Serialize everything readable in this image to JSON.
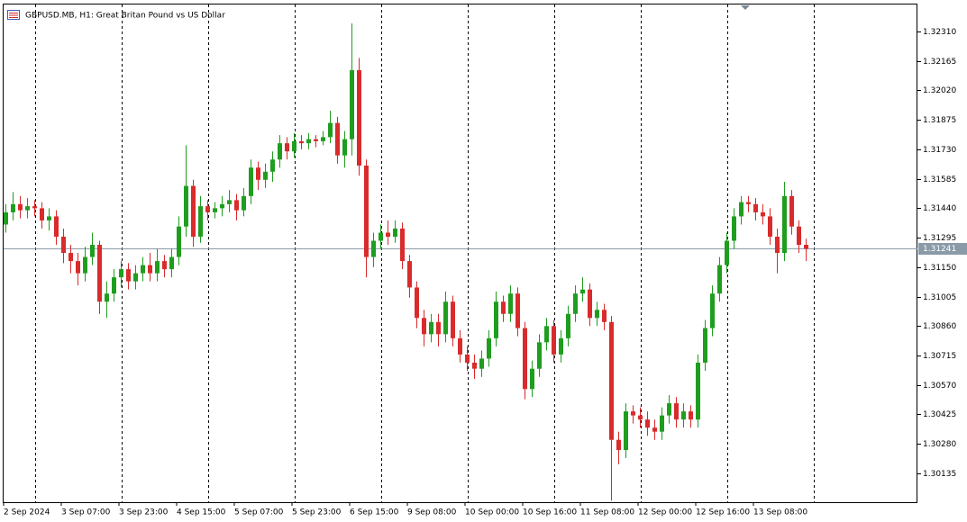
{
  "chart_data": {
    "type": "candlestick",
    "title": "GBPUSD.MB, H1:  Great Britan Pound vs US Dollar",
    "categories": [
      "2 Sep 2024",
      null,
      null,
      null,
      null,
      null,
      null,
      null,
      "3 Sep 07:00",
      null,
      null,
      null,
      null,
      null,
      null,
      null,
      "3 Sep 23:00",
      null,
      null,
      null,
      null,
      null,
      null,
      null,
      "4 Sep 15:00",
      null,
      null,
      null,
      null,
      null,
      null,
      null,
      "5 Sep 07:00",
      null,
      null,
      null,
      null,
      null,
      null,
      null,
      "5 Sep 23:00",
      null,
      null,
      null,
      null,
      null,
      null,
      null,
      "6 Sep 15:00",
      null,
      null,
      null,
      null,
      null,
      null,
      null,
      "9 Sep 08:00",
      null,
      null,
      null,
      null,
      null,
      null,
      null,
      "10 Sep 00:00",
      null,
      null,
      null,
      null,
      null,
      null,
      null,
      "10 Sep 16:00",
      null,
      null,
      null,
      null,
      null,
      null,
      null,
      "11 Sep 08:00",
      null,
      null,
      null,
      null,
      null,
      null,
      null,
      "12 Sep 00:00",
      null,
      null,
      null,
      null,
      null,
      null,
      null,
      "12 Sep 16:00",
      null,
      null,
      null,
      null,
      null,
      null,
      null,
      "13 Sep 08:00",
      null,
      null,
      null,
      null,
      null,
      null,
      null
    ],
    "open": [
      1.3136,
      1.3142,
      1.3146,
      1.3143,
      1.3145,
      1.3144,
      1.3138,
      1.314,
      1.313,
      1.3122,
      1.3118,
      1.3112,
      1.312,
      1.3126,
      1.3098,
      1.3102,
      1.311,
      1.3114,
      1.3108,
      1.3112,
      1.3116,
      1.3112,
      1.3118,
      1.3114,
      1.312,
      1.3135,
      1.3155,
      1.313,
      1.3145,
      1.3142,
      1.3144,
      1.3146,
      1.3148,
      1.3143,
      1.315,
      1.3164,
      1.3158,
      1.3162,
      1.3168,
      1.3176,
      1.3172,
      1.3177,
      1.3176,
      1.3178,
      1.3177,
      1.3179,
      1.3186,
      1.317,
      1.3178,
      1.3212,
      1.3165,
      1.312,
      1.3128,
      1.3132,
      1.313,
      1.3134,
      1.3118,
      1.3105,
      1.309,
      1.3082,
      1.3088,
      1.3082,
      1.3098,
      1.308,
      1.3072,
      1.3068,
      1.3065,
      1.307,
      1.308,
      1.3098,
      1.3092,
      1.3102,
      1.3085,
      1.3055,
      1.3065,
      1.3078,
      1.3086,
      1.3072,
      1.308,
      1.3092,
      1.3102,
      1.3104,
      1.309,
      1.3094,
      1.3088,
      1.303,
      1.3025,
      1.3044,
      1.3042,
      1.304,
      1.3036,
      1.3034,
      1.3042,
      1.3048,
      1.304,
      1.3044,
      1.304,
      1.3068,
      1.3085,
      1.3102,
      1.3116,
      1.3128,
      1.314,
      1.3147,
      1.3146,
      1.3142,
      1.314,
      1.313,
      1.3122,
      1.315,
      1.3135,
      1.3126
    ],
    "high": [
      1.3146,
      1.3152,
      1.315,
      1.3149,
      1.3148,
      1.3147,
      1.3144,
      1.3143,
      1.3134,
      1.3126,
      1.3122,
      1.3125,
      1.3132,
      1.3128,
      1.3108,
      1.3114,
      1.3118,
      1.3117,
      1.3116,
      1.312,
      1.3122,
      1.3124,
      1.3121,
      1.3124,
      1.314,
      1.3175,
      1.3158,
      1.315,
      1.3148,
      1.3147,
      1.315,
      1.3153,
      1.3151,
      1.3154,
      1.3168,
      1.3167,
      1.3166,
      1.3172,
      1.318,
      1.3179,
      1.3181,
      1.318,
      1.3181,
      1.318,
      1.3182,
      1.3192,
      1.3189,
      1.3182,
      1.3235,
      1.3218,
      1.3168,
      1.3132,
      1.3136,
      1.3138,
      1.3138,
      1.3137,
      1.3121,
      1.3108,
      1.3094,
      1.3092,
      1.3092,
      1.3103,
      1.3101,
      1.3084,
      1.3076,
      1.3072,
      1.3074,
      1.3084,
      1.3103,
      1.3101,
      1.3106,
      1.3105,
      1.3088,
      1.3069,
      1.3082,
      1.309,
      1.3089,
      1.3084,
      1.3096,
      1.3106,
      1.311,
      1.3107,
      1.3098,
      1.3097,
      1.3091,
      1.3034,
      1.3048,
      1.3047,
      1.3046,
      1.3044,
      1.304,
      1.3046,
      1.3052,
      1.3051,
      1.3048,
      1.3047,
      1.3072,
      1.3089,
      1.3106,
      1.312,
      1.3132,
      1.3144,
      1.315,
      1.315,
      1.3149,
      1.3146,
      1.3144,
      1.3134,
      1.3157,
      1.3153,
      1.3138,
      1.3129
    ],
    "low": [
      1.3132,
      1.3138,
      1.3139,
      1.3139,
      1.314,
      1.3134,
      1.3133,
      1.3126,
      1.3117,
      1.3112,
      1.3106,
      1.3108,
      1.3116,
      1.3092,
      1.309,
      1.3098,
      1.3105,
      1.3104,
      1.3104,
      1.3108,
      1.3108,
      1.3108,
      1.311,
      1.311,
      1.3116,
      1.313,
      1.3125,
      1.3127,
      1.3138,
      1.3139,
      1.314,
      1.3142,
      1.3138,
      1.314,
      1.3146,
      1.3153,
      1.3154,
      1.3157,
      1.3164,
      1.3168,
      1.3169,
      1.3173,
      1.3173,
      1.3174,
      1.3175,
      1.3176,
      1.3166,
      1.3164,
      1.317,
      1.316,
      1.311,
      1.3115,
      1.3124,
      1.3126,
      1.3127,
      1.3114,
      1.31,
      1.3085,
      1.3076,
      1.3078,
      1.3076,
      1.3078,
      1.3076,
      1.3068,
      1.3064,
      1.306,
      1.3061,
      1.3066,
      1.3076,
      1.3088,
      1.3088,
      1.3081,
      1.305,
      1.3051,
      1.3061,
      1.3074,
      1.3068,
      1.3068,
      1.3076,
      1.3088,
      1.3098,
      1.3086,
      1.3086,
      1.3084,
      1.3,
      1.3018,
      1.3021,
      1.3038,
      1.3036,
      1.3032,
      1.303,
      1.303,
      1.3038,
      1.3036,
      1.3036,
      1.3036,
      1.3036,
      1.3064,
      1.3081,
      1.3098,
      1.3112,
      1.3124,
      1.3136,
      1.3142,
      1.3138,
      1.3136,
      1.3126,
      1.3112,
      1.3118,
      1.3131,
      1.3122,
      1.3118
    ],
    "close": [
      1.3142,
      1.3146,
      1.3143,
      1.3145,
      1.3144,
      1.3138,
      1.314,
      1.313,
      1.3122,
      1.3118,
      1.3112,
      1.312,
      1.3126,
      1.3098,
      1.3102,
      1.311,
      1.3114,
      1.3108,
      1.3112,
      1.3116,
      1.3112,
      1.3118,
      1.3114,
      1.312,
      1.3135,
      1.3155,
      1.313,
      1.3145,
      1.3142,
      1.3144,
      1.3146,
      1.3148,
      1.3143,
      1.315,
      1.3164,
      1.3158,
      1.3162,
      1.3168,
      1.3176,
      1.3172,
      1.3177,
      1.3176,
      1.3178,
      1.3177,
      1.3179,
      1.3186,
      1.317,
      1.3178,
      1.3212,
      1.3165,
      1.312,
      1.3128,
      1.3132,
      1.313,
      1.3134,
      1.3118,
      1.3105,
      1.309,
      1.3082,
      1.3088,
      1.3082,
      1.3098,
      1.308,
      1.3072,
      1.3068,
      1.3065,
      1.307,
      1.308,
      1.3098,
      1.3092,
      1.3102,
      1.3085,
      1.3055,
      1.3065,
      1.3078,
      1.3086,
      1.3072,
      1.308,
      1.3092,
      1.3102,
      1.3104,
      1.309,
      1.3094,
      1.3088,
      1.303,
      1.3025,
      1.3044,
      1.3042,
      1.304,
      1.3036,
      1.3034,
      1.3042,
      1.3048,
      1.304,
      1.3044,
      1.304,
      1.3068,
      1.3085,
      1.3102,
      1.3116,
      1.3128,
      1.314,
      1.3147,
      1.3146,
      1.3142,
      1.314,
      1.313,
      1.3122,
      1.315,
      1.3135,
      1.3126,
      1.31241
    ],
    "up_color": "#1f9d1f",
    "down_color": "#d92b2b",
    "last_price": 1.31241,
    "ylim": [
      1.29993,
      1.32443
    ],
    "yticks": [
      {
        "value": 1.3231,
        "label": "1.32310"
      },
      {
        "value": 1.32165,
        "label": "1.32165"
      },
      {
        "value": 1.3202,
        "label": "1.32020"
      },
      {
        "value": 1.31875,
        "label": "1.31875"
      },
      {
        "value": 1.3173,
        "label": "1.31730"
      },
      {
        "value": 1.31585,
        "label": "1.31585"
      },
      {
        "value": 1.3144,
        "label": "1.31440"
      },
      {
        "value": 1.31295,
        "label": "1.31295"
      },
      {
        "value": 1.3115,
        "label": "1.31150"
      },
      {
        "value": 1.31005,
        "label": "1.31005"
      },
      {
        "value": 1.3086,
        "label": "1.30860"
      },
      {
        "value": 1.30715,
        "label": "1.30715"
      },
      {
        "value": 1.3057,
        "label": "1.30570"
      },
      {
        "value": 1.30425,
        "label": "1.30425"
      },
      {
        "value": 1.3028,
        "label": "1.30280"
      },
      {
        "value": 1.30135,
        "label": "1.30135"
      }
    ],
    "grid": true
  }
}
